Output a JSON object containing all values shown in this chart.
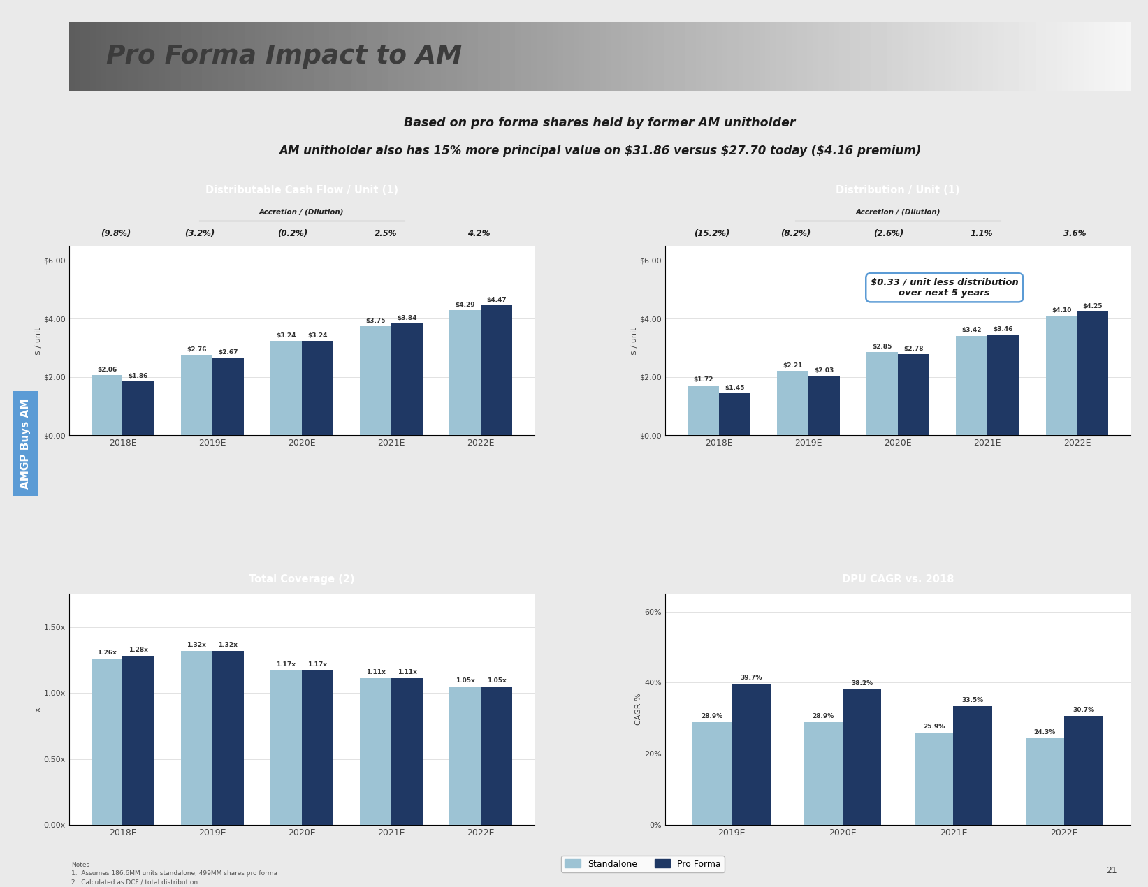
{
  "title": "Pro Forma Impact to AM",
  "subtitle_line1": "Based on pro forma shares held by former AM unitholder",
  "subtitle_line2": "AM unitholder also has 15% more principal value on $31.86 versus $27.70 today ($4.16 premium)",
  "side_label": "AMGP Buys AM",
  "dcf_title": "Distributable Cash Flow / Unit (1)",
  "dcf_accretion_label": "Accretion / (Dilution)",
  "dcf_accretion_values": [
    "(9.8%)",
    "(3.2%)",
    "(0.2%)",
    "2.5%",
    "4.2%"
  ],
  "dcf_years": [
    "2018E",
    "2019E",
    "2020E",
    "2021E",
    "2022E"
  ],
  "dcf_standalone": [
    2.06,
    2.76,
    3.24,
    3.75,
    4.29
  ],
  "dcf_proforma": [
    1.86,
    2.67,
    3.24,
    3.84,
    4.47
  ],
  "dcf_ylabel": "$ / unit",
  "dcf_yticks": [
    "$0.00",
    "$2.00",
    "$4.00",
    "$6.00"
  ],
  "dcf_ytick_vals": [
    0,
    2,
    4,
    6
  ],
  "dcf_ylim": [
    0,
    6.5
  ],
  "dist_title": "Distribution / Unit (1)",
  "dist_accretion_label": "Accretion / (Dilution)",
  "dist_accretion_values": [
    "(15.2%)",
    "(8.2%)",
    "(2.6%)",
    "1.1%",
    "3.6%"
  ],
  "dist_years": [
    "2018E",
    "2019E",
    "2020E",
    "2021E",
    "2022E"
  ],
  "dist_standalone": [
    1.72,
    2.21,
    2.85,
    3.42,
    4.1
  ],
  "dist_proforma": [
    1.45,
    2.03,
    2.78,
    3.46,
    4.25
  ],
  "dist_ylabel": "$ / unit",
  "dist_yticks": [
    "$0.00",
    "$2.00",
    "$4.00",
    "$6.00"
  ],
  "dist_ytick_vals": [
    0,
    2,
    4,
    6
  ],
  "dist_ylim": [
    0,
    6.5
  ],
  "dist_annotation": "$0.33 / unit less distribution\nover next 5 years",
  "cov_title": "Total Coverage (2)",
  "cov_years": [
    "2018E",
    "2019E",
    "2020E",
    "2021E",
    "2022E"
  ],
  "cov_standalone": [
    1.26,
    1.32,
    1.17,
    1.11,
    1.05
  ],
  "cov_proforma": [
    1.28,
    1.32,
    1.17,
    1.11,
    1.05
  ],
  "cov_ylabel": "x",
  "cov_yticks": [
    "0.00x",
    "0.50x",
    "1.00x",
    "1.50x"
  ],
  "cov_ytick_vals": [
    0,
    0.5,
    1.0,
    1.5
  ],
  "cov_ylim": [
    0,
    1.75
  ],
  "dpu_title": "DPU CAGR vs. 2018",
  "dpu_years": [
    "2019E",
    "2020E",
    "2021E",
    "2022E"
  ],
  "dpu_standalone": [
    28.9,
    28.9,
    25.9,
    24.3
  ],
  "dpu_proforma": [
    39.7,
    38.2,
    33.5,
    30.7
  ],
  "dpu_ylabel": "CAGR %",
  "dpu_yticks": [
    "0%",
    "20%",
    "40%",
    "60%"
  ],
  "dpu_ytick_vals": [
    0,
    20,
    40,
    60
  ],
  "dpu_ylim": [
    0,
    65
  ],
  "color_standalone": "#9DC3D4",
  "color_proforma": "#1F3864",
  "color_header_bg": "#7F7F7F",
  "color_subtitle_bg": "#D6E4F0",
  "color_subtitle_border": "#5B9BD5",
  "color_accretion_bg": "#F2DCDB",
  "color_accretion_border": "#C0504D",
  "color_side_bg": "#5B9BD5",
  "background_color": "#EAEAEA",
  "legend_standalone": "Standalone",
  "legend_proforma": "Pro Forma",
  "notes_line1": "Notes",
  "notes_line2": "1.  Assumes 186.6MM units standalone, 499MM shares pro forma",
  "notes_line3": "2.  Calculated as DCF / total distribution",
  "page_number": "21"
}
